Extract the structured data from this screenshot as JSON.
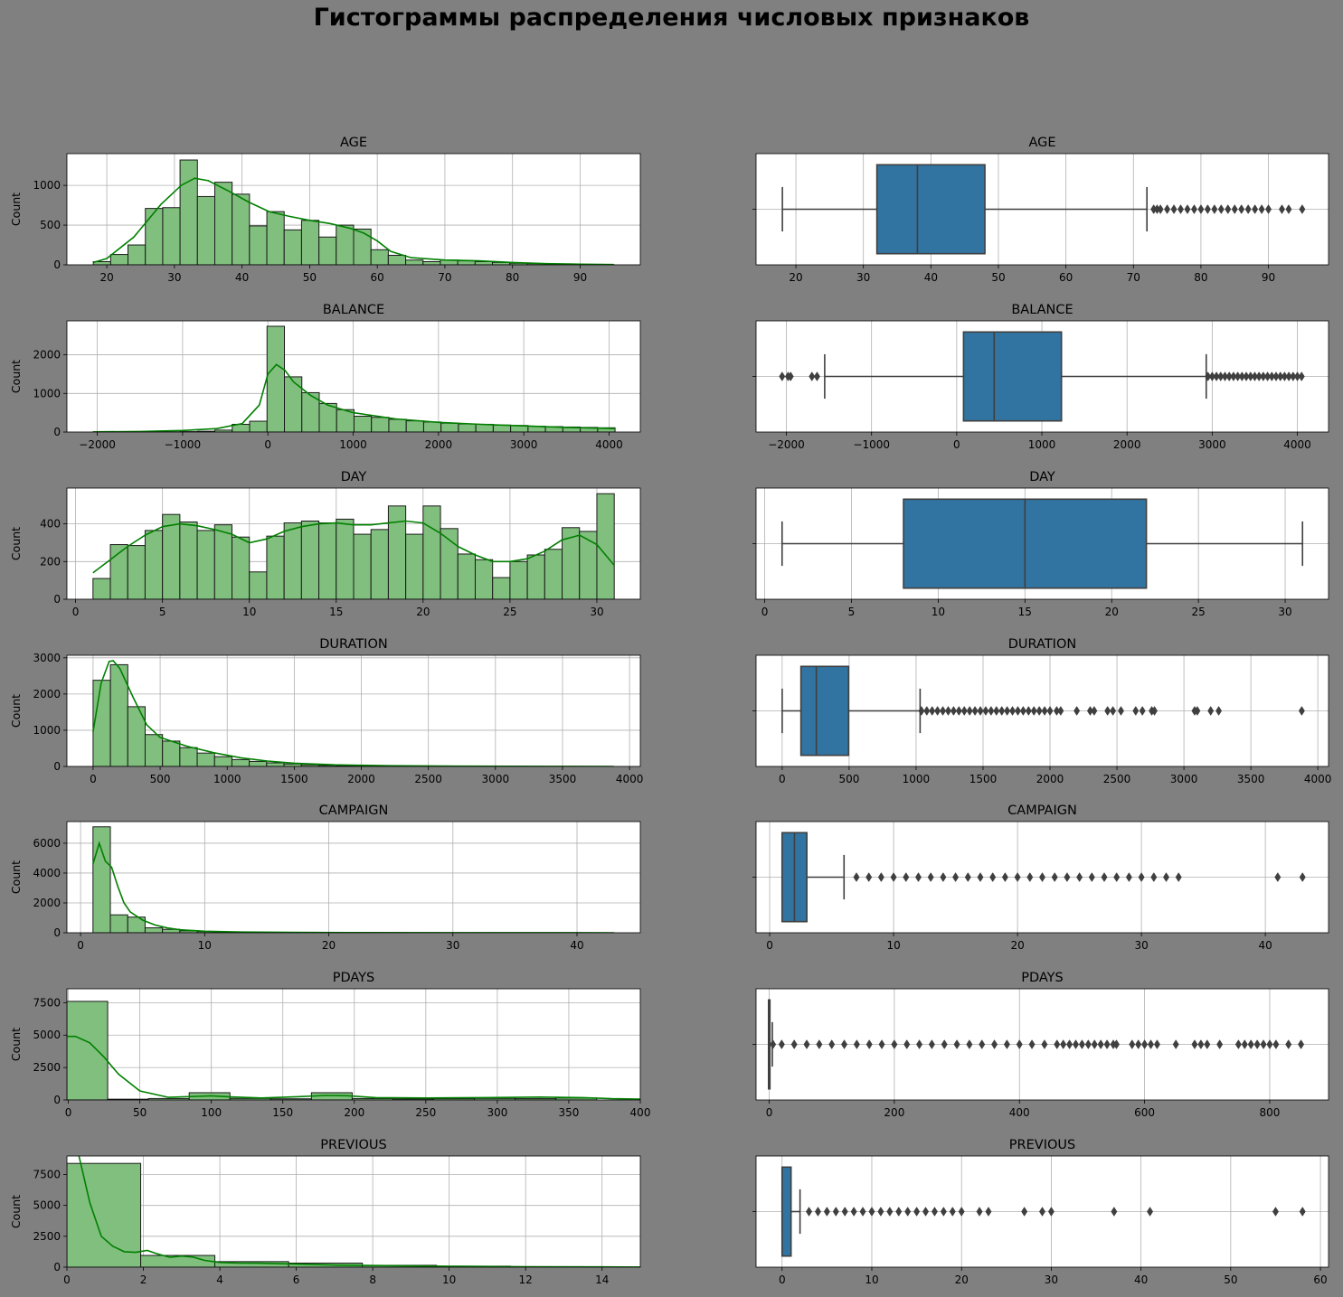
{
  "suptitle": "Гистограммы распределения числовых признаков",
  "colors": {
    "background": "#808080",
    "hist_fill": "#81bf7e",
    "hist_edge": "#1a1a1a",
    "kde_line": "#008000",
    "box_fill": "#3274a1",
    "box_line": "#3f3f3f",
    "grid": "#b0b0b0"
  },
  "chart_data": [
    {
      "type": "histogram",
      "title": "AGE",
      "ylabel": "Count",
      "xlim": [
        14.1,
        98.9
      ],
      "ylim": [
        0,
        1400
      ],
      "xticks": [
        20,
        30,
        40,
        50,
        60,
        70,
        80,
        90
      ],
      "yticks": [
        0,
        500,
        1000
      ],
      "bin_edges": [
        18,
        20.57,
        23.13,
        25.7,
        28.27,
        30.83,
        33.4,
        35.97,
        38.53,
        41.1,
        43.67,
        46.23,
        48.8,
        51.37,
        53.93,
        56.5,
        59.07,
        61.63,
        64.2,
        66.77,
        69.33,
        71.9,
        74.47,
        77.03,
        79.6,
        82.17,
        84.73,
        87.3,
        89.87,
        92.43,
        95
      ],
      "counts": [
        40,
        130,
        250,
        710,
        720,
        1320,
        860,
        1040,
        890,
        490,
        670,
        440,
        560,
        350,
        500,
        450,
        190,
        120,
        60,
        40,
        60,
        50,
        40,
        30,
        20,
        15,
        10,
        8,
        5,
        3
      ],
      "kde_x": [
        18,
        20,
        24,
        28,
        31,
        33,
        35,
        38,
        41,
        44,
        47,
        50,
        53,
        56,
        58,
        60,
        62,
        65,
        70,
        75,
        80,
        85,
        90,
        95
      ],
      "kde_y": [
        30,
        80,
        350,
        760,
        1000,
        1090,
        1060,
        930,
        790,
        670,
        610,
        560,
        520,
        460,
        400,
        300,
        170,
        90,
        60,
        50,
        30,
        15,
        8,
        3
      ]
    },
    {
      "type": "box",
      "title": "AGE",
      "xlim": [
        14.1,
        98.9
      ],
      "xticks": [
        20,
        30,
        40,
        50,
        60,
        70,
        80,
        90
      ],
      "whisker_low": 18,
      "q1": 32,
      "median": 38,
      "q3": 48,
      "whisker_high": 72,
      "outliers": [
        73,
        73.5,
        74,
        75,
        76,
        77,
        78,
        79,
        80,
        81,
        82,
        83,
        84,
        85,
        86,
        87,
        88,
        89,
        90,
        92,
        93,
        95
      ]
    },
    {
      "type": "histogram",
      "title": "BALANCE",
      "ylabel": "Count",
      "xlim": [
        -2356,
        4366
      ],
      "ylim": [
        0,
        2880
      ],
      "xticks": [
        -2000,
        -1000,
        0,
        1000,
        2000,
        3000,
        4000
      ],
      "yticks": [
        0,
        1000,
        2000
      ],
      "bin_edges": [
        -2050,
        -1846,
        -1642,
        -1438,
        -1234,
        -1030,
        -826,
        -622,
        -418,
        -214,
        -10,
        194,
        398,
        602,
        806,
        1010,
        1214,
        1418,
        1622,
        1826,
        2030,
        2234,
        2438,
        2642,
        2846,
        3050,
        3254,
        3458,
        3662,
        3866,
        4070
      ],
      "counts": [
        3,
        2,
        3,
        3,
        5,
        10,
        20,
        50,
        200,
        280,
        2740,
        1430,
        1020,
        740,
        580,
        410,
        380,
        330,
        290,
        260,
        230,
        210,
        200,
        180,
        170,
        150,
        140,
        130,
        120,
        110
      ],
      "kde_x": [
        -2050,
        -1500,
        -1000,
        -600,
        -300,
        -100,
        0,
        100,
        200,
        300,
        500,
        700,
        1000,
        1500,
        2000,
        2500,
        3000,
        3500,
        4070
      ],
      "kde_y": [
        5,
        15,
        40,
        90,
        220,
        700,
        1500,
        1750,
        1600,
        1300,
        950,
        700,
        500,
        340,
        250,
        200,
        160,
        120,
        90
      ]
    },
    {
      "type": "box",
      "title": "BALANCE",
      "xlim": [
        -2356,
        4366
      ],
      "xticks": [
        -2000,
        -1000,
        0,
        1000,
        2000,
        3000,
        4000
      ],
      "whisker_low": -1550,
      "q1": 80,
      "median": 440,
      "q3": 1230,
      "whisker_high": 2930,
      "outliers": [
        -2050,
        -1980,
        -1950,
        -1700,
        -1640,
        2950,
        3000,
        3050,
        3100,
        3150,
        3200,
        3250,
        3300,
        3350,
        3400,
        3450,
        3500,
        3550,
        3600,
        3650,
        3700,
        3750,
        3800,
        3850,
        3900,
        3950,
        4000,
        4050
      ]
    },
    {
      "type": "histogram",
      "title": "DAY",
      "ylabel": "Count",
      "xlim": [
        -0.5,
        32.5
      ],
      "ylim": [
        0,
        590
      ],
      "xticks": [
        0,
        5,
        10,
        15,
        20,
        25,
        30
      ],
      "yticks": [
        0,
        200,
        400
      ],
      "bin_edges": [
        1,
        2,
        3,
        4,
        5,
        6,
        7,
        8,
        9,
        10,
        11,
        12,
        13,
        14,
        15,
        16,
        17,
        18,
        19,
        20,
        21,
        22,
        23,
        24,
        25,
        26,
        27,
        28,
        29,
        30,
        31
      ],
      "counts": [
        110,
        290,
        285,
        365,
        450,
        410,
        365,
        395,
        330,
        145,
        335,
        405,
        415,
        405,
        425,
        345,
        370,
        495,
        345,
        495,
        375,
        240,
        210,
        115,
        200,
        235,
        265,
        380,
        360,
        560
      ],
      "kde_x": [
        1,
        2,
        3,
        4,
        5,
        6,
        7,
        8,
        9,
        10,
        11,
        12,
        13,
        14,
        15,
        16,
        17,
        18,
        19,
        20,
        21,
        22,
        23,
        24,
        25,
        26,
        27,
        28,
        29,
        30,
        31
      ],
      "kde_y": [
        140,
        210,
        280,
        340,
        385,
        400,
        390,
        370,
        345,
        300,
        320,
        360,
        385,
        400,
        405,
        395,
        395,
        405,
        415,
        405,
        350,
        280,
        235,
        200,
        200,
        215,
        255,
        315,
        340,
        290,
        180
      ]
    },
    {
      "type": "box",
      "title": "DAY",
      "xlim": [
        -0.5,
        32.5
      ],
      "xticks": [
        0,
        5,
        10,
        15,
        20,
        25,
        30
      ],
      "whisker_low": 1,
      "q1": 8,
      "median": 15,
      "q3": 22,
      "whisker_high": 31,
      "outliers": []
    },
    {
      "type": "histogram",
      "title": "DURATION",
      "ylabel": "Count",
      "xlim": [
        -195,
        4080
      ],
      "ylim": [
        0,
        3070
      ],
      "xticks": [
        0,
        500,
        1000,
        1500,
        2000,
        2500,
        3000,
        3500,
        4000
      ],
      "yticks": [
        0,
        1000,
        2000,
        3000
      ],
      "bin_edges": [
        0,
        129.4,
        258.8,
        388.2,
        517.6,
        647,
        776.4,
        905.8,
        1035.2,
        1164.6,
        1294,
        1423.4,
        1552.8,
        1682.2,
        1811.6,
        1941,
        2070.4,
        2199.8,
        2329.2,
        2458.6,
        2588,
        2717.4,
        2846.8,
        2976.2,
        3105.6,
        3235,
        3364.4,
        3493.8,
        3623.2,
        3752.6,
        3882
      ],
      "counts": [
        2380,
        2810,
        1650,
        880,
        700,
        520,
        370,
        270,
        190,
        140,
        100,
        70,
        45,
        30,
        22,
        15,
        10,
        8,
        6,
        5,
        4,
        3,
        2,
        2,
        2,
        1,
        1,
        1,
        1,
        1
      ],
      "kde_x": [
        0,
        60,
        120,
        150,
        200,
        300,
        400,
        500,
        700,
        900,
        1100,
        1300,
        1500,
        1800,
        2200,
        2800,
        3400,
        3882
      ],
      "kde_y": [
        950,
        2300,
        2900,
        2920,
        2700,
        1900,
        1150,
        800,
        560,
        380,
        240,
        150,
        90,
        45,
        20,
        8,
        3,
        1
      ]
    },
    {
      "type": "box",
      "title": "DURATION",
      "xlim": [
        -195,
        4080
      ],
      "xticks": [
        0,
        500,
        1000,
        1500,
        2000,
        2500,
        3000,
        3500,
        4000
      ],
      "whisker_low": 0,
      "q1": 140,
      "median": 255,
      "q3": 496,
      "whisker_high": 1030,
      "outliers": [
        1040,
        1080,
        1120,
        1160,
        1200,
        1240,
        1280,
        1320,
        1360,
        1400,
        1440,
        1480,
        1520,
        1560,
        1600,
        1640,
        1680,
        1720,
        1760,
        1800,
        1840,
        1880,
        1920,
        1960,
        2000,
        2050,
        2080,
        2200,
        2300,
        2330,
        2430,
        2470,
        2530,
        2640,
        2690,
        2760,
        2780,
        3080,
        3100,
        3200,
        3260,
        3880
      ]
    },
    {
      "type": "histogram",
      "title": "CAMPAIGN",
      "ylabel": "Count",
      "xlim": [
        -1.1,
        45.1
      ],
      "ylim": [
        0,
        7450
      ],
      "xticks": [
        0,
        10,
        20,
        30,
        40
      ],
      "yticks": [
        0,
        2000,
        4000,
        6000
      ],
      "bin_edges": [
        1,
        2.4,
        3.8,
        5.2,
        6.6,
        8,
        9.4,
        10.8,
        12.2,
        13.6,
        15,
        16.4,
        17.8,
        19.2,
        20.6,
        22,
        23.4,
        24.8,
        26.2,
        27.6,
        29,
        30.4,
        31.8,
        33.2,
        34.6,
        36,
        37.4,
        38.8,
        40.2,
        41.6,
        43
      ],
      "counts": [
        7100,
        1200,
        1050,
        330,
        230,
        130,
        80,
        50,
        35,
        25,
        20,
        15,
        12,
        10,
        8,
        6,
        5,
        4,
        3,
        3,
        2,
        2,
        2,
        1,
        1,
        1,
        1,
        1,
        1,
        1
      ],
      "kde_x": [
        1,
        1.5,
        2,
        2.5,
        3,
        3.5,
        4,
        5,
        6,
        7,
        8,
        10,
        13,
        17,
        22,
        30,
        43
      ],
      "kde_y": [
        4600,
        6000,
        4800,
        4400,
        3100,
        2000,
        1400,
        850,
        520,
        320,
        200,
        100,
        50,
        25,
        12,
        5,
        2
      ]
    },
    {
      "type": "box",
      "title": "CAMPAIGN",
      "xlim": [
        -1.1,
        45.1
      ],
      "xticks": [
        0,
        10,
        20,
        30,
        40
      ],
      "whisker_low": 1,
      "q1": 1,
      "median": 2,
      "q3": 3,
      "whisker_high": 6,
      "outliers": [
        7,
        8,
        9,
        10,
        11,
        12,
        13,
        14,
        15,
        16,
        17,
        18,
        19,
        20,
        21,
        22,
        23,
        24,
        25,
        26,
        27,
        28,
        29,
        30,
        31,
        32,
        33,
        41,
        43
      ]
    },
    {
      "type": "histogram",
      "title": "PDAYS",
      "ylabel": "Count",
      "xlim": [
        -1,
        400
      ],
      "ylim": [
        0,
        8570
      ],
      "xticks": [
        0,
        50,
        100,
        150,
        200,
        250,
        300,
        350,
        400
      ],
      "yticks": [
        0,
        2500,
        5000,
        7500
      ],
      "bin_edges": [
        -1,
        27.5,
        56,
        84.5,
        113,
        141.5,
        170,
        198.5,
        227,
        255.5,
        284,
        312.5,
        341,
        369.5
      ],
      "counts": [
        7600,
        60,
        110,
        560,
        120,
        90,
        560,
        110,
        80,
        100,
        120,
        100,
        150
      ],
      "kde_x": [
        -1,
        5,
        15,
        25,
        35,
        50,
        70,
        90,
        100,
        115,
        135,
        160,
        180,
        195,
        215,
        250,
        290,
        330,
        360,
        380,
        400
      ],
      "kde_y": [
        4900,
        4900,
        4400,
        3300,
        2000,
        700,
        200,
        280,
        320,
        230,
        150,
        250,
        350,
        330,
        180,
        150,
        180,
        220,
        180,
        100,
        70
      ]
    },
    {
      "type": "box",
      "title": "PDAYS",
      "xlim": [
        -21,
        894
      ],
      "xticks": [
        0,
        200,
        400,
        600,
        800
      ],
      "whisker_low": -1,
      "q1": -1,
      "median": -1,
      "q3": -1,
      "whisker_high": 5,
      "outliers": [
        6,
        20,
        40,
        60,
        80,
        100,
        120,
        140,
        160,
        180,
        200,
        220,
        240,
        260,
        280,
        300,
        320,
        340,
        360,
        380,
        400,
        420,
        440,
        460,
        470,
        480,
        490,
        500,
        510,
        520,
        530,
        540,
        550,
        555,
        580,
        590,
        600,
        610,
        620,
        650,
        680,
        690,
        700,
        720,
        750,
        760,
        770,
        780,
        790,
        800,
        810,
        830,
        850
      ]
    },
    {
      "type": "histogram",
      "title": "PREVIOUS",
      "ylabel": "Count",
      "xlim": [
        0,
        15
      ],
      "ylim": [
        0,
        9000
      ],
      "xticks": [
        0,
        2,
        4,
        6,
        8,
        10,
        12,
        14
      ],
      "yticks": [
        0,
        2500,
        5000,
        7500
      ],
      "bin_edges": [
        0,
        1.93,
        3.87,
        5.8,
        7.73,
        9.67,
        11.6,
        13.53,
        15.47
      ],
      "counts": [
        8400,
        950,
        450,
        330,
        150,
        80,
        40,
        20
      ],
      "kde_x": [
        0,
        0.3,
        0.6,
        0.9,
        1.2,
        1.5,
        1.8,
        2.1,
        2.4,
        2.7,
        3,
        3.3,
        3.6,
        4,
        4.5,
        5,
        6,
        7,
        8,
        9,
        10,
        12,
        14,
        15
      ],
      "kde_y": [
        9500,
        9200,
        5200,
        2500,
        1700,
        1250,
        1200,
        1350,
        1050,
        800,
        900,
        820,
        550,
        380,
        330,
        320,
        250,
        170,
        130,
        100,
        70,
        40,
        20,
        10
      ]
    },
    {
      "type": "box",
      "title": "PREVIOUS",
      "xlim": [
        -2.9,
        60.9
      ],
      "xticks": [
        0,
        10,
        20,
        30,
        40,
        50,
        60
      ],
      "whisker_low": 0,
      "q1": 0,
      "median": 0,
      "q3": 1,
      "whisker_high": 2,
      "outliers": [
        3,
        4,
        5,
        6,
        7,
        8,
        9,
        10,
        11,
        12,
        13,
        14,
        15,
        16,
        17,
        18,
        19,
        20,
        22,
        23,
        27,
        29,
        30,
        37,
        41,
        55,
        58
      ]
    }
  ]
}
